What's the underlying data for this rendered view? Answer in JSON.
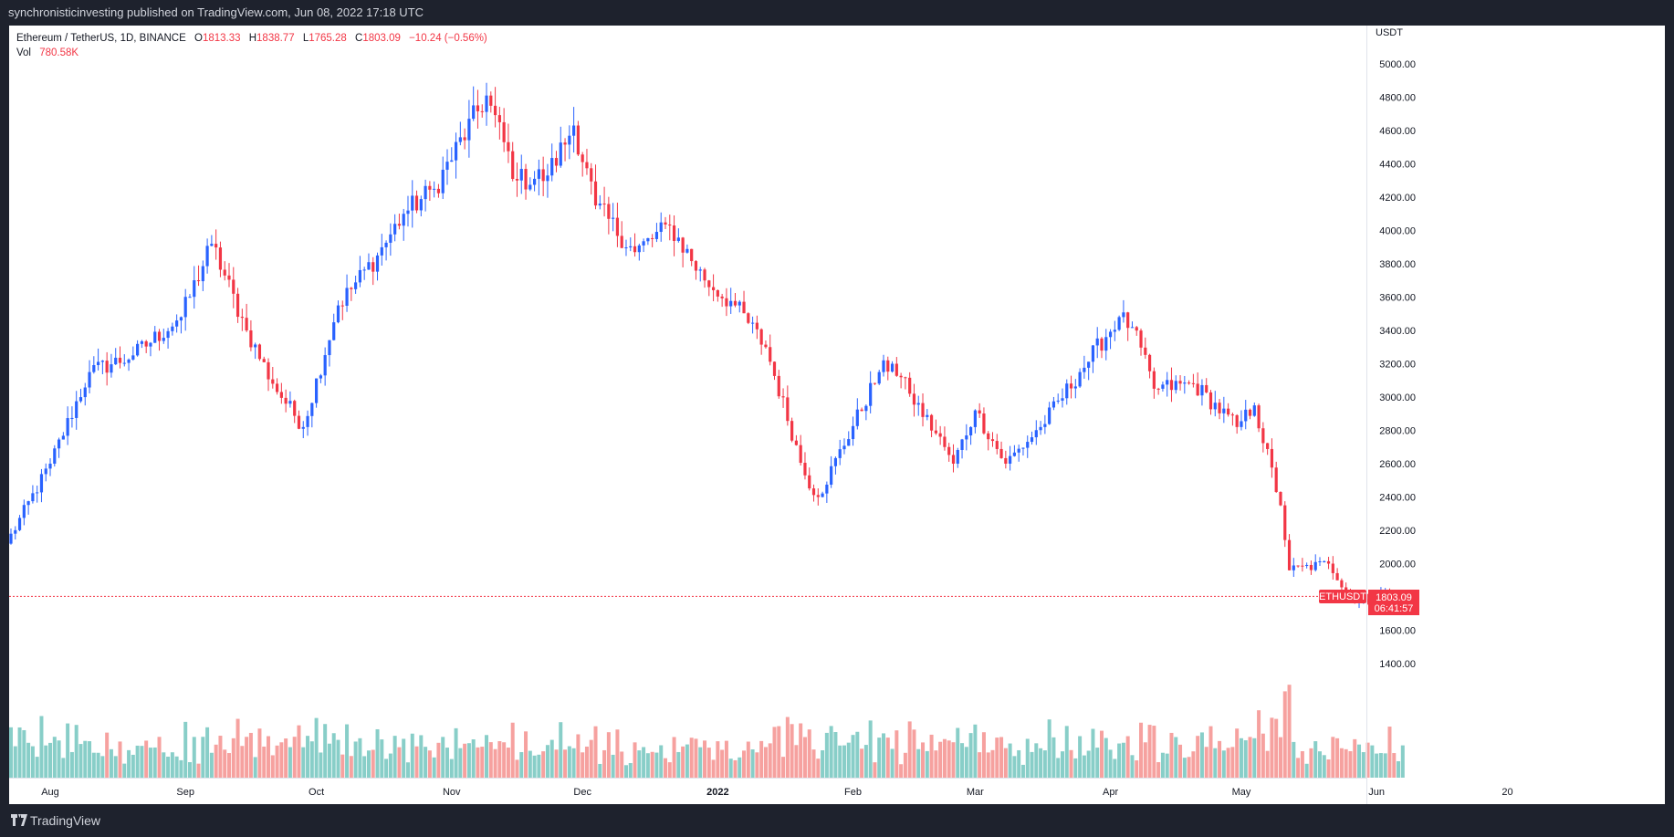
{
  "header": {
    "publish_line": "synchronisticinvesting published on TradingView.com, Jun 08, 2022 17:18 UTC"
  },
  "legend": {
    "symbol": "Ethereum / TetherUS, 1D, BINANCE",
    "open_label": "O",
    "open": "1813.33",
    "high_label": "H",
    "high": "1838.77",
    "low_label": "L",
    "low": "1765.28",
    "close_label": "C",
    "close": "1803.09",
    "change": "−10.24 (−0.56%)",
    "vol_label": "Vol",
    "vol": "780.58K"
  },
  "price_axis": {
    "currency": "USDT",
    "ticks": [
      "5000.00",
      "4800.00",
      "4600.00",
      "4400.00",
      "4200.00",
      "4000.00",
      "3800.00",
      "3600.00",
      "3400.00",
      "3200.00",
      "3000.00",
      "2800.00",
      "2600.00",
      "2400.00",
      "2200.00",
      "2000.00",
      "1600.00",
      "1400.00"
    ]
  },
  "time_axis": {
    "labels": [
      "Aug",
      "Sep",
      "Oct",
      "Nov",
      "Dec",
      "2022",
      "Feb",
      "Mar",
      "Apr",
      "May",
      "Jun",
      "20"
    ]
  },
  "last_price": {
    "symbol_tag": "ETHUSDT",
    "price": "1803.09",
    "countdown": "06:41:57"
  },
  "footer": {
    "brand": "TradingView"
  },
  "colors": {
    "up": "#2962ff",
    "down": "#f23645",
    "vol_up": "#26a69a",
    "vol_down": "#ef5350",
    "background": "#ffffff",
    "frame": "#1e222d"
  },
  "chart_data": {
    "type": "candlestick",
    "title": "Ethereum / TetherUS, 1D, BINANCE",
    "interval": "1D",
    "ylabel": "USDT",
    "ylim": [
      1400,
      5100
    ],
    "grid": false,
    "x": [
      "2021-07-22",
      "2021-08-01",
      "2021-08-10",
      "2021-08-20",
      "2021-08-31",
      "2021-09-07",
      "2021-09-15",
      "2021-09-21",
      "2021-09-28",
      "2021-10-06",
      "2021-10-15",
      "2021-10-21",
      "2021-10-28",
      "2021-11-09",
      "2021-11-16",
      "2021-11-23",
      "2021-11-29",
      "2021-12-04",
      "2021-12-13",
      "2021-12-21",
      "2021-12-29",
      "2022-01-05",
      "2022-01-12",
      "2022-01-21",
      "2022-01-24",
      "2022-02-07",
      "2022-02-10",
      "2022-02-14",
      "2022-02-22",
      "2022-02-24",
      "2022-03-01",
      "2022-03-08",
      "2022-03-16",
      "2022-03-25",
      "2022-04-03",
      "2022-04-06",
      "2022-04-11",
      "2022-04-20",
      "2022-04-30",
      "2022-05-04",
      "2022-05-10",
      "2022-05-12",
      "2022-05-21",
      "2022-05-27",
      "2022-06-02",
      "2022-06-07"
    ],
    "close": [
      2120,
      2600,
      3150,
      3250,
      3480,
      3920,
      3400,
      3080,
      2820,
      3550,
      3850,
      4100,
      4250,
      4810,
      4300,
      4330,
      4630,
      4150,
      3870,
      4030,
      3700,
      3550,
      3300,
      2530,
      2400,
      3150,
      3200,
      3020,
      2700,
      2600,
      2920,
      2600,
      2820,
      3150,
      3480,
      3420,
      3050,
      3080,
      2820,
      2950,
      2350,
      1960,
      2000,
      1770,
      1820,
      1803
    ],
    "annotations": {
      "last_price": 1803.09,
      "last_price_time_to_close": "06:41:57"
    },
    "series": [
      {
        "name": "Vol",
        "last_value": "780.58K"
      }
    ]
  }
}
